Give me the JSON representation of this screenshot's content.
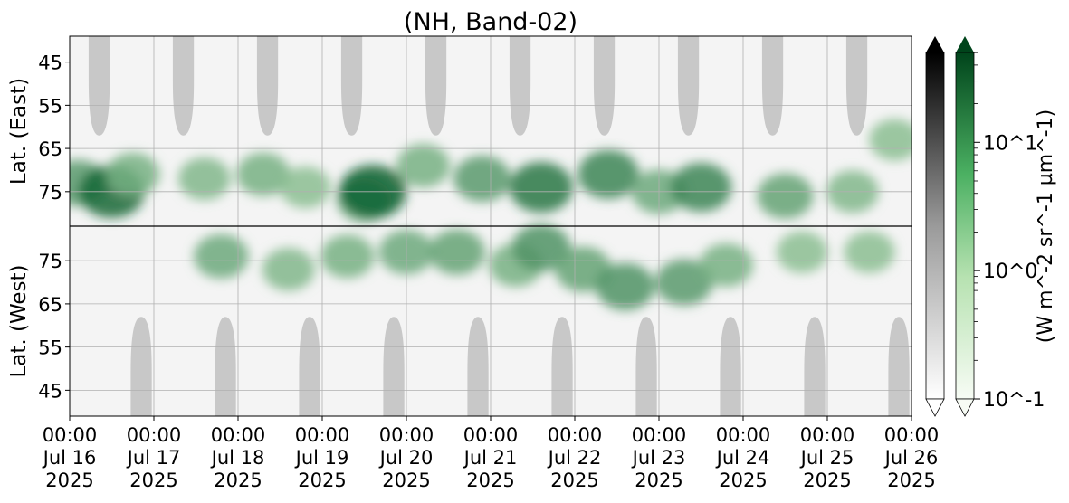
{
  "chart_data": {
    "type": "heatmap",
    "title": "(NH, Band-02)",
    "upper_ylabel": "Lat. (East)",
    "lower_ylabel": "Lat. (West)",
    "upper_yticks": [
      "45",
      "55",
      "65",
      "75"
    ],
    "lower_yticks": [
      "75",
      "65",
      "55",
      "45"
    ],
    "upper_ylim": [
      39,
      83
    ],
    "lower_ylim": [
      83,
      39
    ],
    "x_ticks": [
      [
        "00:00",
        "Jul 16",
        "2025"
      ],
      [
        "00:00",
        "Jul 17",
        "2025"
      ],
      [
        "00:00",
        "Jul 18",
        "2025"
      ],
      [
        "00:00",
        "Jul 19",
        "2025"
      ],
      [
        "00:00",
        "Jul 20",
        "2025"
      ],
      [
        "00:00",
        "Jul 21",
        "2025"
      ],
      [
        "00:00",
        "Jul 22",
        "2025"
      ],
      [
        "00:00",
        "Jul 23",
        "2025"
      ],
      [
        "00:00",
        "Jul 24",
        "2025"
      ],
      [
        "00:00",
        "Jul 25",
        "2025"
      ],
      [
        "00:00",
        "Jul 26",
        "2025"
      ]
    ],
    "x_range": [
      "2025-07-16 00:00",
      "2025-07-26 00:00"
    ],
    "grid": true,
    "colorbar_gray": {
      "cmap": "Greys",
      "extend": "max"
    },
    "colorbar_green": {
      "cmap": "Greens",
      "extend": "both",
      "scale": "log",
      "ticks": [
        "10^-1",
        "10^0",
        "10^1"
      ],
      "tick_exponents": [
        -1,
        0,
        1
      ]
    },
    "colorbar_label": "(W m^-2 sr^-1 µm^-1)",
    "gray_mask_color": "#c8c8c8",
    "upper_masks_day_center": [
      0.35,
      1.35,
      2.35,
      3.35,
      4.35,
      5.35,
      6.35,
      7.35,
      8.35,
      9.35
    ],
    "lower_masks_day_center": [
      0.85,
      1.85,
      2.85,
      3.85,
      4.85,
      5.85,
      6.85,
      7.85,
      8.85,
      9.85
    ],
    "mask_latitude_edge": 62,
    "green_blobs": [
      {
        "day": 0.1,
        "lat": 73,
        "hemi": "east",
        "intensity": 0.55
      },
      {
        "day": 0.5,
        "lat": 75,
        "hemi": "east",
        "intensity": 0.9
      },
      {
        "day": 0.75,
        "lat": 71,
        "hemi": "east",
        "intensity": 0.4
      },
      {
        "day": 1.6,
        "lat": 72,
        "hemi": "east",
        "intensity": 0.35
      },
      {
        "day": 1.8,
        "lat": 76,
        "hemi": "west",
        "intensity": 0.45
      },
      {
        "day": 2.3,
        "lat": 71,
        "hemi": "east",
        "intensity": 0.4
      },
      {
        "day": 2.6,
        "lat": 73,
        "hemi": "west",
        "intensity": 0.35
      },
      {
        "day": 2.8,
        "lat": 74,
        "hemi": "east",
        "intensity": 0.3
      },
      {
        "day": 3.3,
        "lat": 76,
        "hemi": "west",
        "intensity": 0.4
      },
      {
        "day": 3.5,
        "lat": 77,
        "hemi": "east",
        "intensity": 0.45
      },
      {
        "day": 3.6,
        "lat": 75,
        "hemi": "east",
        "intensity": 0.95
      },
      {
        "day": 4.0,
        "lat": 77,
        "hemi": "west",
        "intensity": 0.45
      },
      {
        "day": 4.2,
        "lat": 69,
        "hemi": "east",
        "intensity": 0.4
      },
      {
        "day": 4.6,
        "lat": 77,
        "hemi": "west",
        "intensity": 0.5
      },
      {
        "day": 4.9,
        "lat": 72,
        "hemi": "east",
        "intensity": 0.55
      },
      {
        "day": 5.3,
        "lat": 74,
        "hemi": "west",
        "intensity": 0.4
      },
      {
        "day": 5.6,
        "lat": 74,
        "hemi": "east",
        "intensity": 0.8
      },
      {
        "day": 5.6,
        "lat": 78,
        "hemi": "west",
        "intensity": 0.6
      },
      {
        "day": 6.1,
        "lat": 73,
        "hemi": "west",
        "intensity": 0.5
      },
      {
        "day": 6.4,
        "lat": 71,
        "hemi": "east",
        "intensity": 0.7
      },
      {
        "day": 6.6,
        "lat": 69,
        "hemi": "west",
        "intensity": 0.6
      },
      {
        "day": 7.0,
        "lat": 75,
        "hemi": "east",
        "intensity": 0.45
      },
      {
        "day": 7.3,
        "lat": 70,
        "hemi": "west",
        "intensity": 0.55
      },
      {
        "day": 7.5,
        "lat": 74,
        "hemi": "east",
        "intensity": 0.7
      },
      {
        "day": 7.8,
        "lat": 74,
        "hemi": "west",
        "intensity": 0.4
      },
      {
        "day": 8.5,
        "lat": 76,
        "hemi": "east",
        "intensity": 0.5
      },
      {
        "day": 8.7,
        "lat": 77,
        "hemi": "west",
        "intensity": 0.3
      },
      {
        "day": 9.3,
        "lat": 75,
        "hemi": "east",
        "intensity": 0.35
      },
      {
        "day": 9.5,
        "lat": 77,
        "hemi": "west",
        "intensity": 0.3
      },
      {
        "day": 9.8,
        "lat": 63,
        "hemi": "east",
        "intensity": 0.3
      }
    ]
  }
}
